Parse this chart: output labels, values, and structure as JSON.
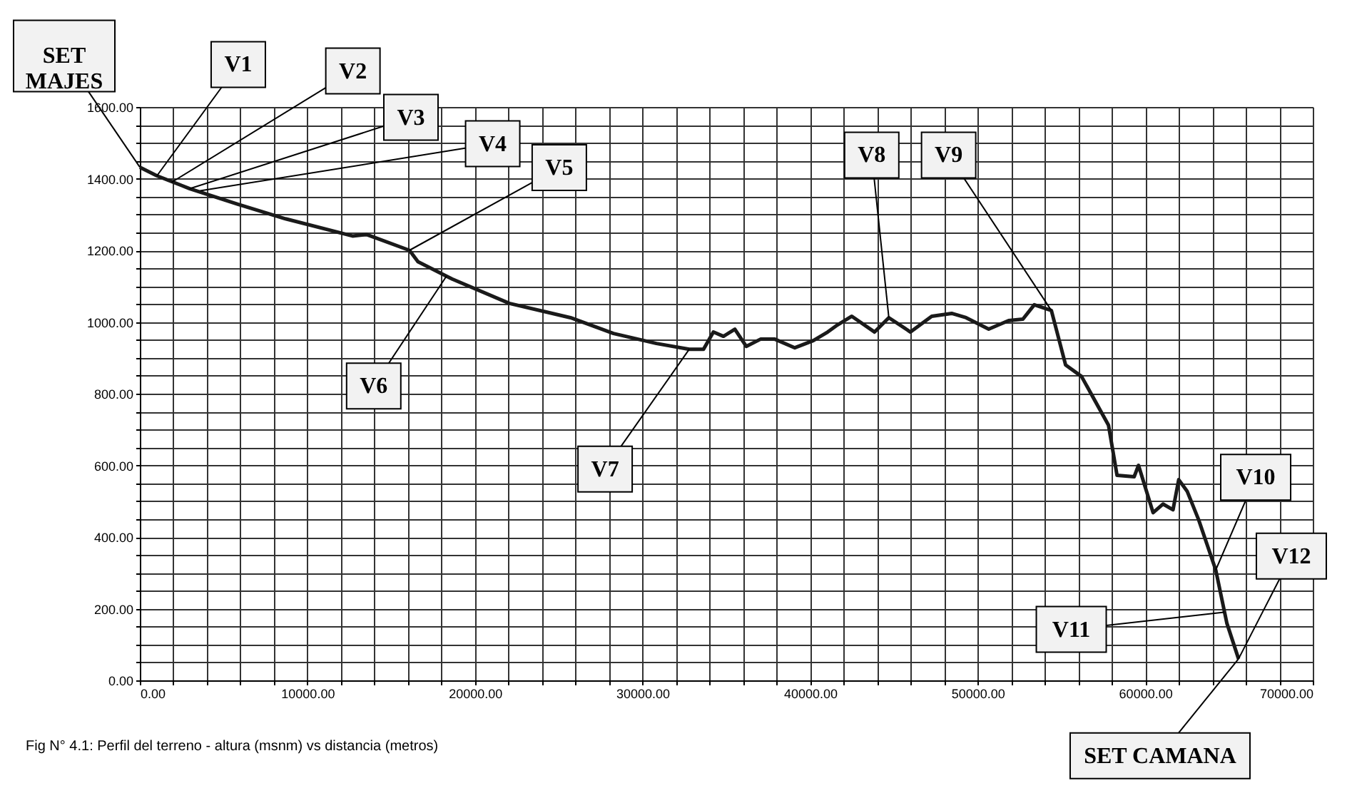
{
  "chart_data": {
    "type": "line",
    "annotations": [
      {
        "text": "SET MAJES",
        "x": 0,
        "y": 1432
      },
      {
        "text": "V1",
        "x": 1020,
        "y": 1408
      },
      {
        "text": "V2",
        "x": 1900,
        "y": 1390
      },
      {
        "text": "V3",
        "x": 2980,
        "y": 1372
      },
      {
        "text": "V4",
        "x": 3600,
        "y": 1366
      },
      {
        "text": "V5",
        "x": 16090,
        "y": 1200
      },
      {
        "text": "V6",
        "x": 18300,
        "y": 1128
      },
      {
        "text": "V7",
        "x": 32790,
        "y": 924
      },
      {
        "text": "V8",
        "x": 44700,
        "y": 1012
      },
      {
        "text": "V9",
        "x": 54400,
        "y": 1032
      },
      {
        "text": "V10",
        "x": 64210,
        "y": 308
      },
      {
        "text": "V11",
        "x": 64700,
        "y": 190
      },
      {
        "text": "V12",
        "x": 65570,
        "y": 60
      },
      {
        "text": "SET CAMANA",
        "x": 65570,
        "y": 60
      },
      "Fig N° 4.1: Perfil del terreno  - altura (msnm) vs distancia (metros)"
    ],
    "series": [
      {
        "color": "#1a1a1a",
        "x": [
          0,
          1020,
          2980,
          5880,
          8690,
          12690,
          13530,
          14000,
          16090,
          16600,
          18300,
          18640,
          22050,
          25700,
          28270,
          30830,
          32790,
          33640,
          34230,
          34830,
          35510,
          36190,
          37040,
          37900,
          39090,
          40190,
          41050,
          41640,
          42490,
          43850,
          44700,
          45990,
          47260,
          48450,
          49310,
          50660,
          51850,
          52700,
          53380,
          54400,
          55250,
          56200,
          57810,
          58320,
          59340,
          59600,
          60470,
          61060,
          61660,
          62000,
          62500,
          63190,
          64210,
          64870,
          65570
        ],
        "values": [
          1432,
          1408,
          1372,
          1328,
          1288,
          1240,
          1244,
          1236,
          1200,
          1168,
          1128,
          1120,
          1052,
          1012,
          968,
          940,
          924,
          924,
          972,
          960,
          980,
          932,
          952,
          952,
          928,
          948,
          972,
          992,
          1016,
          972,
          1012,
          972,
          1016,
          1024,
          1012,
          980,
          1004,
          1008,
          1048,
          1032,
          880,
          848,
          712,
          572,
          568,
          600,
          468,
          492,
          476,
          560,
          528,
          448,
          308,
          160,
          60
        ]
      }
    ],
    "xlim": [
      0,
      70000
    ],
    "ylim": [
      0,
      1600
    ],
    "xticks": [
      {
        "value": 0,
        "label": "0.00"
      },
      {
        "value": 2000,
        "label": null
      },
      {
        "value": 4000,
        "label": null
      },
      {
        "value": 6000,
        "label": null
      },
      {
        "value": 8000,
        "label": null
      },
      {
        "value": 10000,
        "label": "10000.00"
      },
      {
        "value": 12000,
        "label": null
      },
      {
        "value": 14000,
        "label": null
      },
      {
        "value": 16000,
        "label": null
      },
      {
        "value": 18000,
        "label": null
      },
      {
        "value": 20000,
        "label": "20000.00"
      },
      {
        "value": 22000,
        "label": null
      },
      {
        "value": 24000,
        "label": null
      },
      {
        "value": 26000,
        "label": null
      },
      {
        "value": 28000,
        "label": null
      },
      {
        "value": 30000,
        "label": "30000.00"
      },
      {
        "value": 32000,
        "label": null
      },
      {
        "value": 34000,
        "label": null
      },
      {
        "value": 36000,
        "label": null
      },
      {
        "value": 38000,
        "label": null
      },
      {
        "value": 40000,
        "label": "40000.00"
      },
      {
        "value": 42000,
        "label": null
      },
      {
        "value": 44000,
        "label": null
      },
      {
        "value": 46000,
        "label": null
      },
      {
        "value": 48000,
        "label": null
      },
      {
        "value": 50000,
        "label": "50000.00"
      },
      {
        "value": 52000,
        "label": null
      },
      {
        "value": 54000,
        "label": null
      },
      {
        "value": 56000,
        "label": null
      },
      {
        "value": 58000,
        "label": null
      },
      {
        "value": 60000,
        "label": "60000.00"
      },
      {
        "value": 62000,
        "label": null
      },
      {
        "value": 64000,
        "label": null
      },
      {
        "value": 66000,
        "label": null
      },
      {
        "value": 68000,
        "label": null
      },
      {
        "value": 70000,
        "label": "70000.00"
      }
    ],
    "yticks": [
      {
        "value": 0,
        "label": "0.00"
      },
      {
        "value": 50,
        "label": null
      },
      {
        "value": 100,
        "label": null
      },
      {
        "value": 150,
        "label": null
      },
      {
        "value": 200,
        "label": "200.00"
      },
      {
        "value": 250,
        "label": null
      },
      {
        "value": 300,
        "label": null
      },
      {
        "value": 350,
        "label": null
      },
      {
        "value": 400,
        "label": "400.00"
      },
      {
        "value": 450,
        "label": null
      },
      {
        "value": 500,
        "label": null
      },
      {
        "value": 550,
        "label": null
      },
      {
        "value": 600,
        "label": "600.00"
      },
      {
        "value": 650,
        "label": null
      },
      {
        "value": 700,
        "label": null
      },
      {
        "value": 750,
        "label": null
      },
      {
        "value": 800,
        "label": "800.00"
      },
      {
        "value": 850,
        "label": null
      },
      {
        "value": 900,
        "label": null
      },
      {
        "value": 950,
        "label": null
      },
      {
        "value": 1000,
        "label": "1000.00"
      },
      {
        "value": 1050,
        "label": null
      },
      {
        "value": 1100,
        "label": null
      },
      {
        "value": 1150,
        "label": null
      },
      {
        "value": 1200,
        "label": "1200.00"
      },
      {
        "value": 1250,
        "label": null
      },
      {
        "value": 1300,
        "label": null
      },
      {
        "value": 1350,
        "label": null
      },
      {
        "value": 1400,
        "label": "1400.00"
      },
      {
        "value": 1450,
        "label": null
      },
      {
        "value": 1500,
        "label": null
      },
      {
        "value": 1550,
        "label": null
      },
      {
        "value": 1600,
        "label": "1600.00"
      }
    ],
    "grid": true,
    "marker": "none",
    "line_style": "solid"
  }
}
